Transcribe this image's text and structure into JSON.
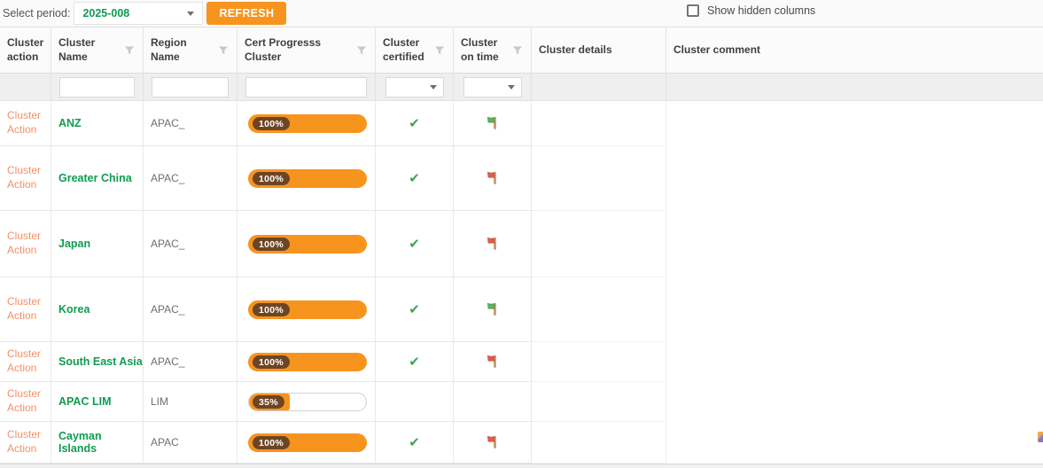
{
  "toolbar": {
    "select_period_label": "Select period:",
    "period_value": "2025-008",
    "refresh_label": "REFRESH",
    "show_hidden_label": "Show hidden columns",
    "show_hidden_checked": false
  },
  "table": {
    "columns": [
      {
        "key": "action",
        "label": "Cluster action",
        "filter_icon": false
      },
      {
        "key": "name",
        "label": "Cluster Name",
        "filter_icon": true
      },
      {
        "key": "region",
        "label": "Region Name",
        "filter_icon": true
      },
      {
        "key": "cert",
        "label": "Cert Progresss Cluster",
        "filter_icon": true
      },
      {
        "key": "certified",
        "label": "Cluster certified",
        "filter_icon": true
      },
      {
        "key": "ontime",
        "label": "Cluster on time",
        "filter_icon": true
      },
      {
        "key": "details",
        "label": "Cluster details",
        "filter_icon": false
      },
      {
        "key": "comment",
        "label": "Cluster comment",
        "filter_icon": false
      }
    ],
    "filter_row": {
      "cluster_name_value": "",
      "region_name_value": "",
      "cert_progress_value": "",
      "certified_value": "",
      "on_time_value": ""
    },
    "action_label": "Cluster Action",
    "rows": [
      {
        "cluster_name": "ANZ",
        "region_name": "APAC_",
        "progress_pct": 100,
        "progress_label": "100%",
        "certified": true,
        "on_time_flag": "green",
        "details": "",
        "comment": ""
      },
      {
        "cluster_name": "Greater China",
        "region_name": "APAC_",
        "progress_pct": 100,
        "progress_label": "100%",
        "certified": true,
        "on_time_flag": "red",
        "details": "",
        "comment": ""
      },
      {
        "cluster_name": "Japan",
        "region_name": "APAC_",
        "progress_pct": 100,
        "progress_label": "100%",
        "certified": true,
        "on_time_flag": "red",
        "details": "",
        "comment": ""
      },
      {
        "cluster_name": "Korea",
        "region_name": "APAC_",
        "progress_pct": 100,
        "progress_label": "100%",
        "certified": true,
        "on_time_flag": "green",
        "details": "",
        "comment": ""
      },
      {
        "cluster_name": "South East Asia",
        "region_name": "APAC_",
        "progress_pct": 100,
        "progress_label": "100%",
        "certified": true,
        "on_time_flag": "red",
        "details": "",
        "comment": ""
      },
      {
        "cluster_name": "APAC LIM",
        "region_name": "LIM",
        "progress_pct": 35,
        "progress_label": "35%",
        "certified": false,
        "on_time_flag": "",
        "details": "",
        "comment": ""
      },
      {
        "cluster_name": "Cayman Islands",
        "region_name": "APAC",
        "progress_pct": 100,
        "progress_label": "100%",
        "certified": true,
        "on_time_flag": "red",
        "details": "",
        "comment": ""
      }
    ]
  },
  "icons": {
    "filter": "funnel-icon",
    "dropdown": "chevron-down-icon",
    "certified_yes": "check-icon",
    "on_time_green": "green-flag-icon",
    "on_time_red": "red-flag-icon"
  },
  "colors": {
    "accent_orange": "#f7941e",
    "badge_brown": "#6e4523",
    "action_link_orange": "#f49069",
    "cluster_name_green": "#0e9c50",
    "check_green": "#46a24a",
    "flag_red": "#e25b4d",
    "flag_green": "#57b560",
    "filter_row_bg": "#efefef"
  }
}
